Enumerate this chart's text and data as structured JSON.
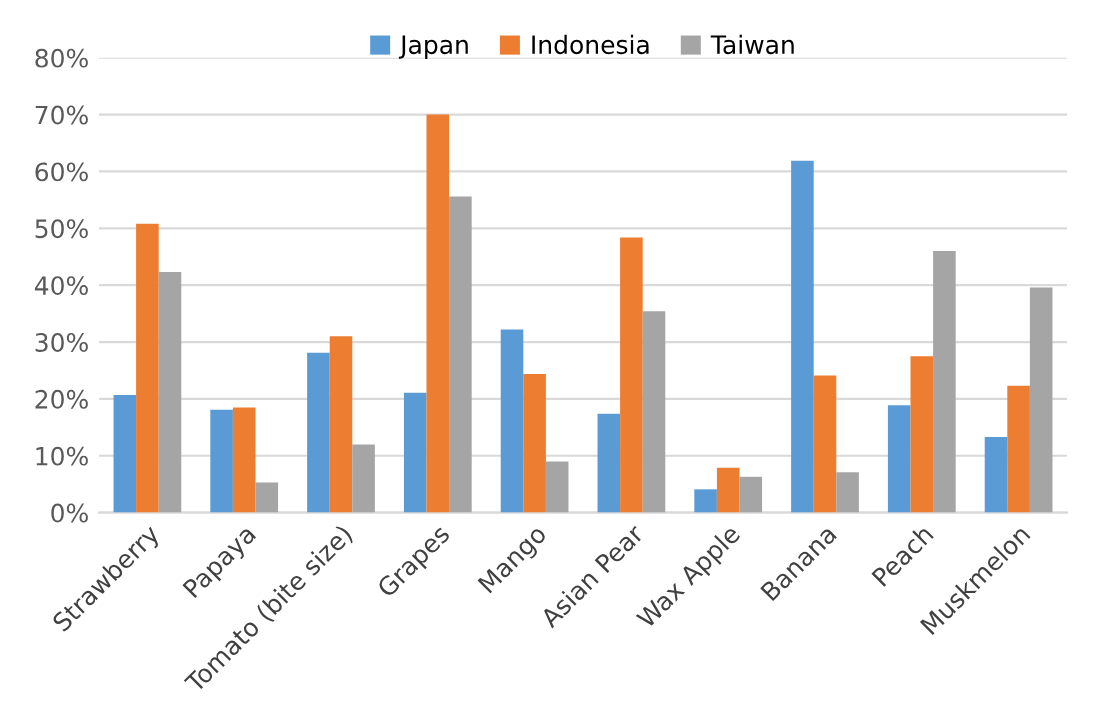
{
  "chart_data": {
    "type": "bar",
    "categories": [
      "Strawberry",
      "Papaya",
      "Tomato (bite size)",
      "Grapes",
      "Mango",
      "Asian Pear",
      "Wax Apple",
      "Banana",
      "Peach",
      "Muskmelon"
    ],
    "series": [
      {
        "name": "Japan",
        "color": "#5b9bd5",
        "values": [
          20.7,
          18.1,
          28.1,
          21.1,
          32.2,
          17.4,
          4.1,
          61.9,
          18.9,
          13.3
        ]
      },
      {
        "name": "Indonesia",
        "color": "#ed7d31",
        "values": [
          50.8,
          18.5,
          31.0,
          70.0,
          24.4,
          48.4,
          7.9,
          24.1,
          27.5,
          22.3
        ]
      },
      {
        "name": "Taiwan",
        "color": "#a5a5a5",
        "values": [
          42.3,
          5.3,
          12.0,
          55.6,
          9.0,
          35.4,
          6.3,
          7.1,
          46.0,
          39.6
        ]
      }
    ],
    "ylim": [
      0,
      80
    ],
    "yticks": [
      {
        "value": 0,
        "label": "0%"
      },
      {
        "value": 10,
        "label": "10%"
      },
      {
        "value": 20,
        "label": "20%"
      },
      {
        "value": 30,
        "label": "30%"
      },
      {
        "value": 40,
        "label": "40%"
      },
      {
        "value": 50,
        "label": "50%"
      },
      {
        "value": 60,
        "label": "60%"
      },
      {
        "value": 70,
        "label": "70%"
      },
      {
        "value": 80,
        "label": "80%"
      }
    ],
    "grid": "y",
    "legend": "top"
  }
}
